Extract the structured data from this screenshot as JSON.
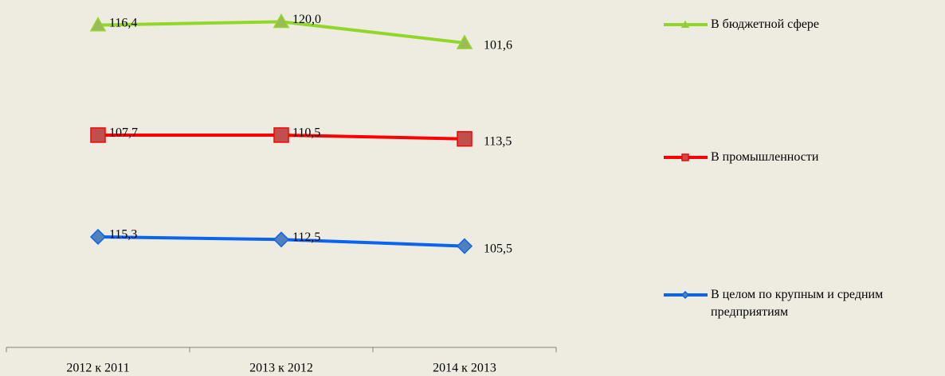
{
  "chart_data": {
    "type": "line",
    "stacked": true,
    "categories": [
      "2012 к 2011",
      "2013 к 2012",
      "2014 к 2013"
    ],
    "series": [
      {
        "name": "В целом по крупным и средним предприятиям",
        "color": "#0a64f0",
        "marker": "diamond",
        "marker_fill": "#4f81bd",
        "values": [
          115.3,
          112.5,
          105.5
        ],
        "value_labels": [
          "115,3",
          "112,5",
          "105,5"
        ]
      },
      {
        "name": "В промышленности",
        "color": "#ff0000",
        "marker": "square",
        "marker_fill": "#c0504d",
        "values": [
          107.7,
          110.5,
          113.5
        ],
        "value_labels": [
          "107,7",
          "110,5",
          "113,5"
        ]
      },
      {
        "name": "В бюджетной сфере",
        "color": "#92d629",
        "marker": "triangle",
        "marker_fill": "#9bbb59",
        "values": [
          116.4,
          120.0,
          101.6
        ],
        "value_labels": [
          "116,4",
          "120,0",
          "101,6"
        ]
      }
    ],
    "ylim": [
      0,
      350
    ],
    "legend": "right"
  }
}
